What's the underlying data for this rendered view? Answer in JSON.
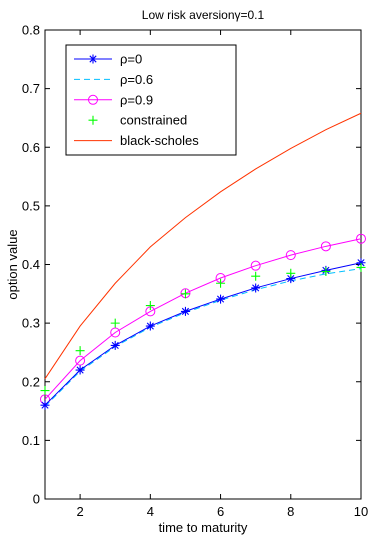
{
  "chart_data": {
    "type": "line",
    "title": "Low risk aversionγ=0.1",
    "xlabel": "time to maturity",
    "ylabel": "option value",
    "xlim": [
      1,
      10
    ],
    "ylim": [
      0,
      0.8
    ],
    "xticks": [
      2,
      4,
      6,
      8,
      10
    ],
    "xtick_labels": [
      "2",
      "4",
      "6",
      "8",
      "10"
    ],
    "yticks": [
      0,
      0.1,
      0.2,
      0.3,
      0.4,
      0.5,
      0.6,
      0.7,
      0.8
    ],
    "ytick_labels": [
      "0",
      "0.1",
      "0.2",
      "0.3",
      "0.4",
      "0.5",
      "0.6",
      "0.7",
      "0.8"
    ],
    "grid": false,
    "legend_position": "top-left",
    "series": [
      {
        "name": "ρ=0",
        "color": "#0000ff",
        "line": "solid",
        "marker": "asterisk",
        "x": [
          1,
          2,
          3,
          4,
          5,
          6,
          7,
          8,
          9,
          10
        ],
        "values": [
          0.16,
          0.22,
          0.262,
          0.295,
          0.32,
          0.341,
          0.36,
          0.376,
          0.39,
          0.403
        ]
      },
      {
        "name": "ρ=0.6",
        "color": "#00bfff",
        "line": "dashed",
        "marker": "none",
        "x": [
          1,
          2,
          3,
          4,
          5,
          6,
          7,
          8,
          9,
          10
        ],
        "values": [
          0.158,
          0.218,
          0.26,
          0.293,
          0.318,
          0.339,
          0.357,
          0.372,
          0.384,
          0.393
        ]
      },
      {
        "name": "ρ=0.9",
        "color": "#ff00ff",
        "line": "solid",
        "marker": "circle",
        "x": [
          1,
          2,
          3,
          4,
          5,
          6,
          7,
          8,
          9,
          10
        ],
        "values": [
          0.17,
          0.236,
          0.284,
          0.32,
          0.351,
          0.377,
          0.398,
          0.416,
          0.431,
          0.444
        ]
      },
      {
        "name": "constrained",
        "color": "#00ff00",
        "line": "none",
        "marker": "plus",
        "x": [
          1,
          2,
          3,
          4,
          5,
          6,
          7,
          8,
          9,
          10
        ],
        "values": [
          0.185,
          0.253,
          0.3,
          0.33,
          0.35,
          0.368,
          0.38,
          0.385,
          0.388,
          0.395
        ]
      },
      {
        "name": "black-scholes",
        "color": "#ff3300",
        "line": "solid",
        "marker": "none",
        "x": [
          1,
          2,
          3,
          4,
          5,
          6,
          7,
          8,
          9,
          10
        ],
        "values": [
          0.205,
          0.295,
          0.368,
          0.43,
          0.48,
          0.524,
          0.563,
          0.598,
          0.63,
          0.658
        ]
      }
    ]
  }
}
